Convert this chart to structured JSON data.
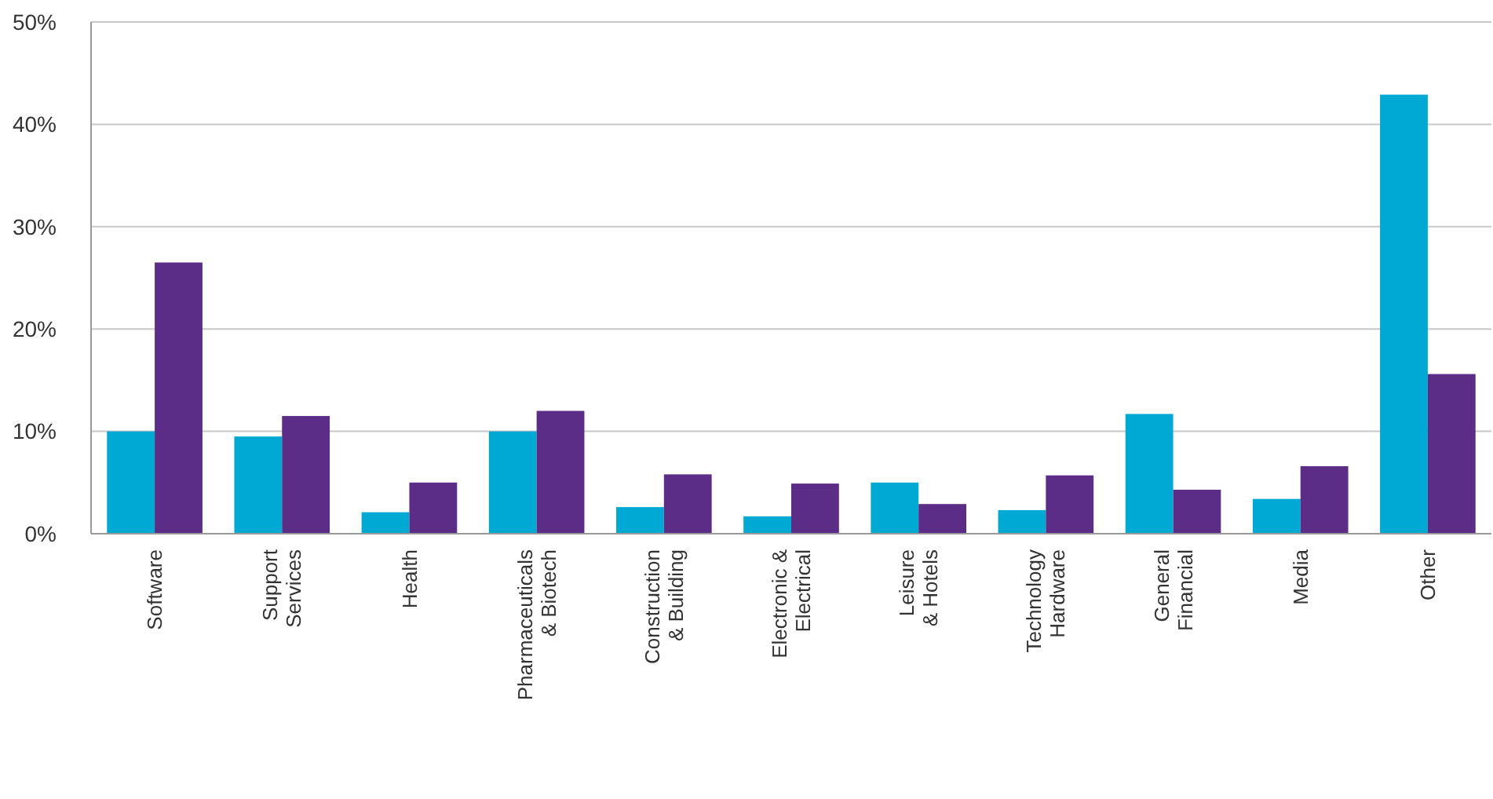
{
  "chart_data": {
    "type": "bar",
    "categories": [
      "Software",
      "Support\nServices",
      "Health",
      "Pharmaceuticals\n& Biotech",
      "Construction\n& Building",
      "Electronic &\nElectrical",
      "Leisure\n& Hotels",
      "Technology\nHardware",
      "General\nFinancial",
      "Media",
      "Other"
    ],
    "series": [
      {
        "color": "#00a9d4",
        "values": [
          10,
          9.5,
          2.1,
          10,
          2.6,
          1.7,
          5,
          2.3,
          11.7,
          3.4,
          42.9
        ]
      },
      {
        "color": "#5c2d86",
        "values": [
          26.5,
          11.5,
          5,
          12,
          5.8,
          4.9,
          2.9,
          5.7,
          4.3,
          6.6,
          15.6
        ]
      }
    ],
    "ylim": [
      0,
      50
    ],
    "yticks": [
      {
        "value": 0,
        "label": "0%"
      },
      {
        "value": 10,
        "label": "10%"
      },
      {
        "value": 20,
        "label": "20%"
      },
      {
        "value": 30,
        "label": "30%"
      },
      {
        "value": 40,
        "label": "40%"
      },
      {
        "value": 50,
        "label": "50%"
      }
    ],
    "grid": "y"
  }
}
